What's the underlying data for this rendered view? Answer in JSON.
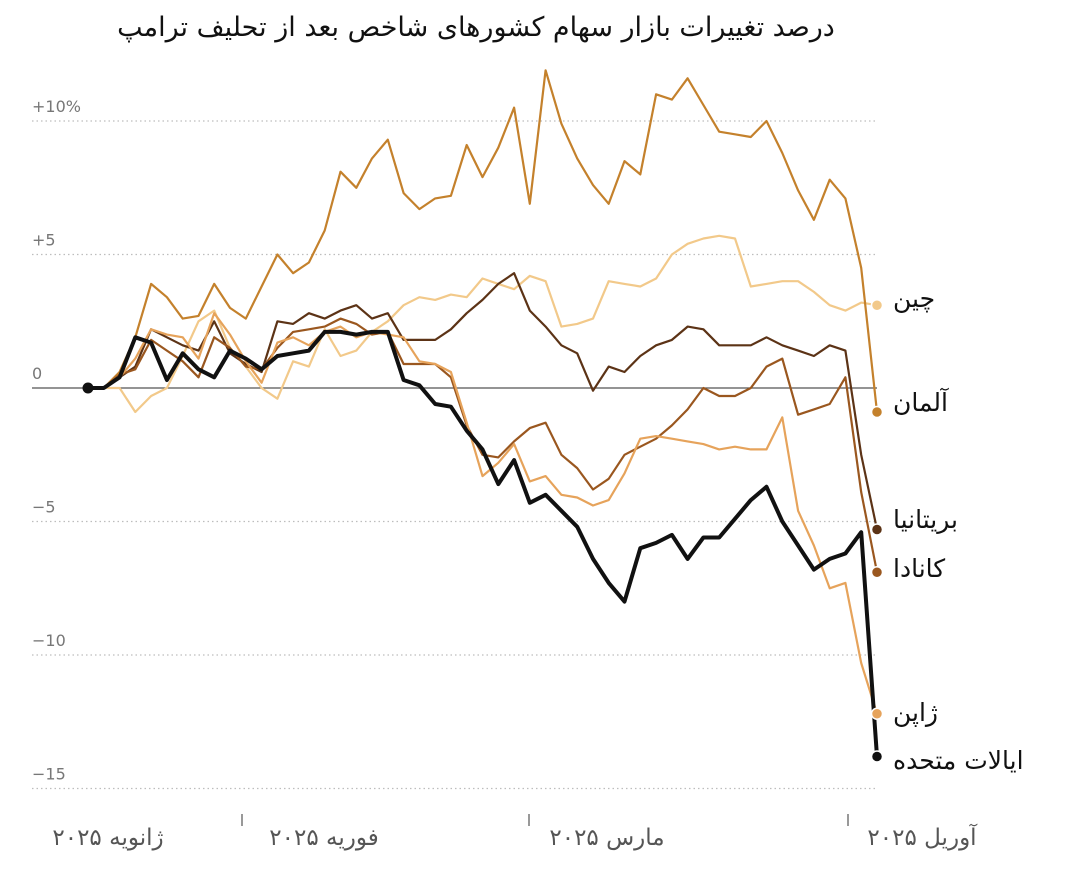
{
  "chart_data": {
    "type": "line",
    "title": "درصد تغییرات بازار سهام کشورهای شاخص بعد از تحلیف ترامپ",
    "ylim": [
      -15,
      12
    ],
    "y_ticks": [
      {
        "value": 10,
        "label": "+10%"
      },
      {
        "value": 5,
        "label": "+5"
      },
      {
        "value": 0,
        "label": "0"
      },
      {
        "value": -5,
        "label": "−5"
      },
      {
        "value": -10,
        "label": "−10"
      },
      {
        "value": -15,
        "label": "−15"
      }
    ],
    "x_ticks": [
      {
        "date": "2025-01-20",
        "label": "ژانویه ۲۰۲۵"
      },
      {
        "date": "2025-02-01",
        "label": "فوریه ۲۰۲۵"
      },
      {
        "date": "2025-03-01",
        "label": "مارس ۲۰۲۵"
      },
      {
        "date": "2025-04-01",
        "label": "آوریل ۲۰۲۵"
      }
    ],
    "grid": true,
    "series": [
      {
        "name": "چین",
        "color": "#f2c98a",
        "end_value": 3.1,
        "values": [
          0,
          0,
          0,
          -0.9,
          -0.3,
          0,
          1.2,
          2.5,
          2.9,
          1.5,
          0.8,
          0,
          -0.4,
          1,
          0.8,
          2.2,
          1.2,
          1.4,
          2.1,
          2.5,
          3.1,
          3.4,
          3.3,
          3.5,
          3.4,
          4.1,
          3.9,
          3.7,
          4.2,
          4.0,
          2.3,
          2.4,
          2.6,
          4.0,
          3.9,
          3.8,
          4.1,
          5.0,
          5.4,
          5.6,
          5.7,
          5.6,
          3.8,
          3.9,
          4.0,
          4.0,
          3.6,
          3.1,
          2.9,
          3.2,
          3.1
        ]
      },
      {
        "name": "آلمان",
        "color": "#c4812c",
        "end_value": -0.9,
        "values": [
          0,
          0,
          0.6,
          1.9,
          3.9,
          3.4,
          2.6,
          2.7,
          3.9,
          3.0,
          2.6,
          3.8,
          5.0,
          4.3,
          4.7,
          5.9,
          8.1,
          7.5,
          8.6,
          9.3,
          7.3,
          6.7,
          7.1,
          7.2,
          9.1,
          7.9,
          9.0,
          10.5,
          6.9,
          11.9,
          9.9,
          8.6,
          7.6,
          6.9,
          8.5,
          8.0,
          11.0,
          10.8,
          11.6,
          10.6,
          9.6,
          9.5,
          9.4,
          10.0,
          8.8,
          7.4,
          6.3,
          7.8,
          7.1,
          4.5,
          -0.9
        ]
      },
      {
        "name": "بریتانیا",
        "color": "#5c3316",
        "end_value": -5.3,
        "values": [
          0,
          0,
          0.4,
          0.8,
          2.2,
          1.9,
          1.6,
          1.4,
          2.5,
          1.3,
          0.9,
          0.6,
          2.5,
          2.4,
          2.8,
          2.6,
          2.9,
          3.1,
          2.6,
          2.8,
          1.8,
          1.8,
          1.8,
          2.2,
          2.8,
          3.3,
          3.9,
          4.3,
          2.9,
          2.3,
          1.6,
          1.3,
          -0.1,
          0.8,
          0.6,
          1.2,
          1.6,
          1.8,
          2.3,
          2.2,
          1.6,
          1.6,
          1.6,
          1.9,
          1.6,
          1.4,
          1.2,
          1.6,
          1.4,
          -2.5,
          -5.3
        ]
      },
      {
        "name": "کانادا",
        "color": "#9a571f",
        "end_value": -6.9,
        "values": [
          0,
          0,
          0.5,
          0.7,
          1.8,
          1.4,
          1.0,
          0.4,
          1.9,
          1.5,
          0.8,
          0.7,
          1.5,
          2.1,
          2.2,
          2.3,
          2.6,
          2.4,
          2.0,
          2.1,
          0.9,
          0.9,
          0.9,
          0.4,
          -1.4,
          -2.5,
          -2.6,
          -2.0,
          -1.5,
          -1.3,
          -2.5,
          -3.0,
          -3.8,
          -3.4,
          -2.5,
          -2.2,
          -1.9,
          -1.4,
          -0.8,
          0.0,
          -0.3,
          -0.3,
          0.0,
          0.8,
          1.1,
          -1.0,
          -0.8,
          -0.6,
          0.4,
          -3.9,
          -6.9
        ]
      },
      {
        "name": "ژاپن",
        "color": "#e6a35b",
        "end_value": -12.2,
        "values": [
          0,
          0,
          0.4,
          1.1,
          2.2,
          2.0,
          1.9,
          1.1,
          2.8,
          2.0,
          1.0,
          0.2,
          1.7,
          1.9,
          1.6,
          2.1,
          2.3,
          1.9,
          2.1,
          2.0,
          1.9,
          1.0,
          0.9,
          0.6,
          -1.3,
          -3.3,
          -2.8,
          -2.1,
          -3.5,
          -3.3,
          -4.0,
          -4.1,
          -4.4,
          -4.2,
          -3.2,
          -1.9,
          -1.8,
          -1.9,
          -2.0,
          -2.1,
          -2.3,
          -2.2,
          -2.3,
          -2.3,
          -1.1,
          -4.6,
          -5.9,
          -7.5,
          -7.3,
          -10.3,
          -12.2
        ]
      },
      {
        "name": "ایالات متحده",
        "color": "#111111",
        "end_value": -13.8,
        "values": [
          0,
          0,
          0.4,
          1.9,
          1.7,
          0.3,
          1.3,
          0.7,
          0.4,
          1.4,
          1.1,
          0.7,
          1.2,
          1.3,
          1.4,
          2.1,
          2.1,
          2.0,
          2.1,
          2.1,
          0.3,
          0.1,
          -0.6,
          -0.7,
          -1.6,
          -2.3,
          -3.6,
          -2.7,
          -4.3,
          -4.0,
          -4.6,
          -5.2,
          -6.4,
          -7.3,
          -8.0,
          -6.0,
          -5.8,
          -5.5,
          -6.4,
          -5.6,
          -5.6,
          -4.9,
          -4.2,
          -3.7,
          -5.0,
          -5.9,
          -6.8,
          -6.4,
          -6.2,
          -5.4,
          -13.8
        ]
      }
    ]
  }
}
